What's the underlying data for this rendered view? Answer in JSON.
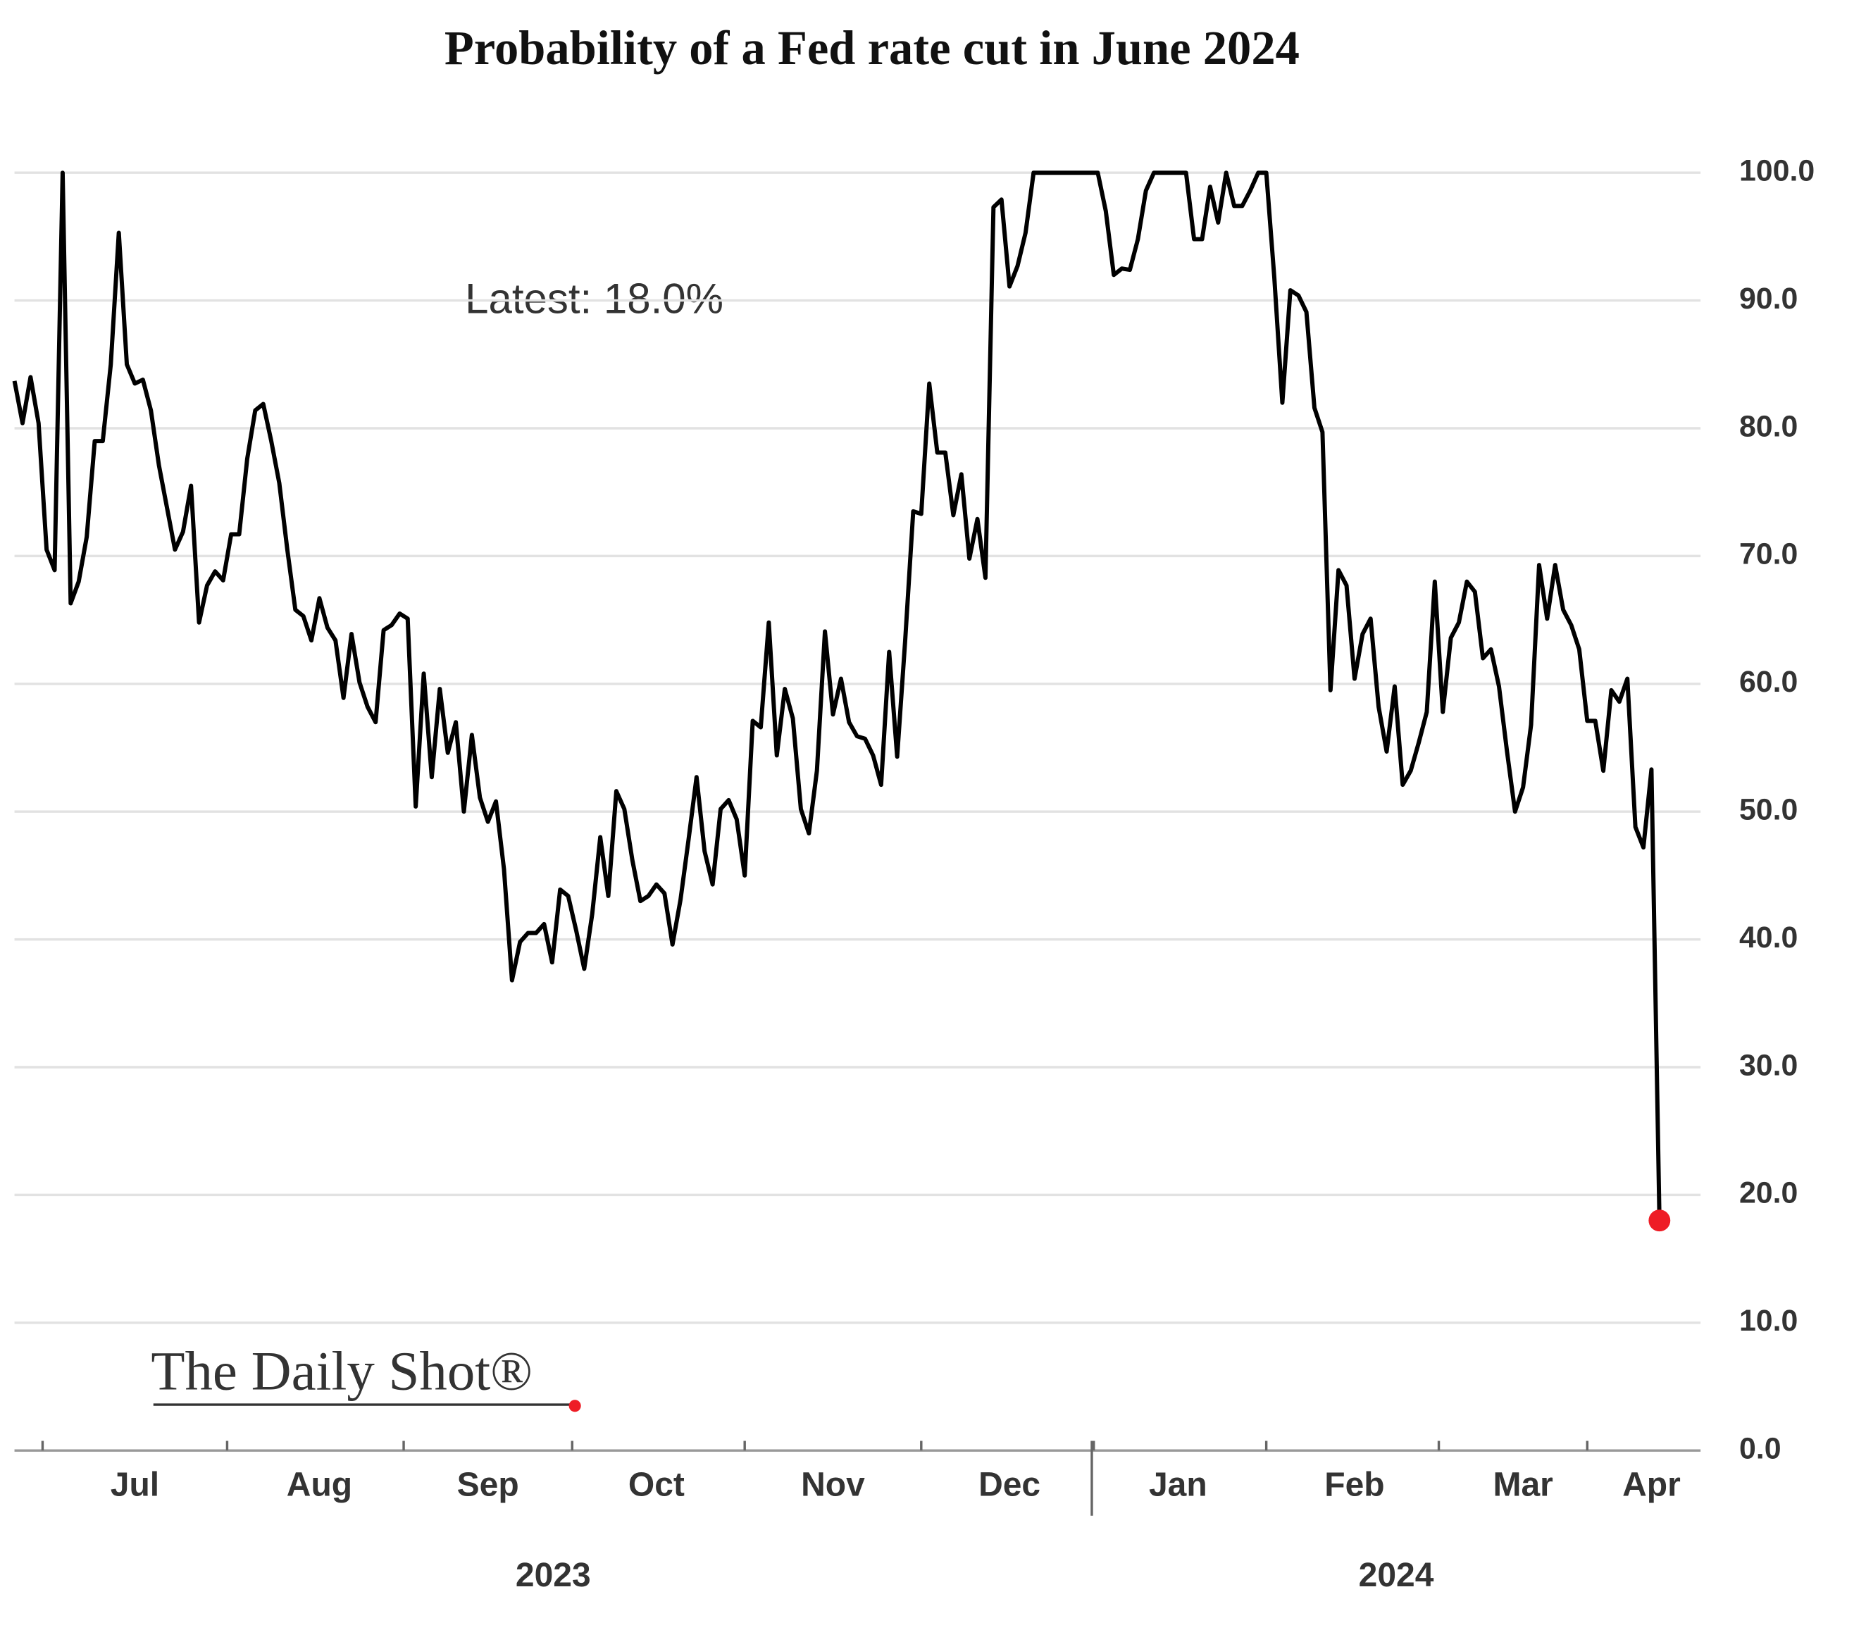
{
  "chart_data": {
    "type": "line",
    "title": "Probability of a Fed rate cut in June 2024",
    "annotation": "Latest:  18.0%",
    "source_logo": "The Daily Shot®",
    "year_labels": [
      "2023",
      "2024"
    ],
    "color": "#000000",
    "marker_color": "#ee1c25",
    "grid": true,
    "ylim": [
      0,
      100
    ],
    "yticks": [
      {
        "value": 0,
        "label": "0.0"
      },
      {
        "value": 10,
        "label": "10.0"
      },
      {
        "value": 20,
        "label": "20.0"
      },
      {
        "value": 30,
        "label": "30.0"
      },
      {
        "value": 40,
        "label": "40.0"
      },
      {
        "value": 50,
        "label": "50.0"
      },
      {
        "value": 60,
        "label": "60.0"
      },
      {
        "value": 70,
        "label": "70.0"
      },
      {
        "value": 80,
        "label": "80.0"
      },
      {
        "value": 90,
        "label": "90.0"
      },
      {
        "value": 100,
        "label": "100.0"
      }
    ],
    "categories": [
      null,
      null,
      null,
      null,
      null,
      null,
      null,
      null,
      null,
      null,
      null,
      null,
      null,
      null,
      null,
      "Jul",
      null,
      null,
      null,
      null,
      null,
      null,
      null,
      null,
      null,
      null,
      null,
      null,
      null,
      null,
      null,
      null,
      null,
      null,
      null,
      null,
      null,
      null,
      "Aug",
      null,
      null,
      null,
      null,
      null,
      null,
      null,
      null,
      null,
      null,
      null,
      null,
      null,
      null,
      null,
      null,
      null,
      null,
      null,
      null,
      "Sep",
      null,
      null,
      null,
      null,
      null,
      null,
      null,
      null,
      null,
      null,
      null,
      null,
      null,
      null,
      null,
      null,
      null,
      null,
      null,
      null,
      "Oct",
      null,
      null,
      null,
      null,
      null,
      null,
      null,
      null,
      null,
      null,
      null,
      null,
      null,
      null,
      null,
      null,
      null,
      null,
      null,
      null,
      null,
      "Nov",
      null,
      null,
      null,
      null,
      null,
      null,
      null,
      null,
      null,
      null,
      null,
      null,
      null,
      null,
      null,
      null,
      null,
      null,
      null,
      null,
      null,
      "Dec",
      null,
      null,
      null,
      null,
      null,
      null,
      null,
      null,
      null,
      null,
      null,
      null,
      null,
      null,
      null,
      null,
      null,
      null,
      null,
      null,
      "Jan",
      null,
      null,
      null,
      null,
      null,
      null,
      null,
      null,
      null,
      null,
      null,
      null,
      null,
      null,
      null,
      null,
      null,
      null,
      null,
      null,
      null,
      "Feb",
      null,
      null,
      null,
      null,
      null,
      null,
      null,
      null,
      null,
      null,
      null,
      null,
      null,
      null,
      null,
      null,
      null,
      null,
      null,
      null,
      "Mar",
      null,
      null,
      null,
      null,
      null,
      null,
      null,
      null,
      null,
      null,
      null,
      null,
      null,
      null,
      null,
      "Apr",
      null
    ],
    "values": [
      83.7,
      80.4,
      84,
      80.4,
      70.5,
      68.9,
      100,
      66.3,
      68,
      71.5,
      79,
      79,
      85,
      95.3,
      85,
      83.5,
      83.8,
      81.4,
      77.1,
      73.8,
      70.5,
      71.9,
      75.5,
      64.8,
      67.7,
      68.8,
      68.1,
      71.7,
      71.7,
      77.6,
      81.4,
      81.9,
      79,
      75.7,
      70.5,
      65.8,
      65.3,
      63.4,
      66.7,
      64.4,
      63.4,
      58.9,
      63.9,
      60.1,
      58.2,
      57,
      64.2,
      64.6,
      65.5,
      65.1,
      50.4,
      60.8,
      52.7,
      59.6,
      54.6,
      57,
      50,
      56,
      51.1,
      49.2,
      50.8,
      45.5,
      36.8,
      39.8,
      40.5,
      40.5,
      41.2,
      38.2,
      43.9,
      43.4,
      40.7,
      37.7,
      42,
      48,
      43.4,
      51.6,
      50.2,
      46.2,
      43,
      43.4,
      44.3,
      43.6,
      39.6,
      43.1,
      47.8,
      52.7,
      46.9,
      44.3,
      50.2,
      50.9,
      49.4,
      45,
      57.1,
      56.6,
      64.8,
      54.4,
      59.6,
      57.3,
      50.2,
      48.3,
      53.2,
      64.1,
      57.6,
      60.4,
      57,
      55.9,
      55.7,
      54.4,
      52.1,
      62.5,
      54.3,
      63.4,
      73.5,
      73.3,
      83.5,
      78.1,
      78.1,
      73.2,
      76.4,
      69.8,
      72.9,
      68.3,
      97.3,
      97.9,
      91.1,
      92.7,
      95.3,
      100,
      100,
      100,
      100,
      100,
      100,
      100,
      100,
      100,
      97,
      92,
      92.5,
      92.4,
      94.8,
      98.6,
      100,
      100,
      100,
      100,
      100,
      94.8,
      94.8,
      98.9,
      96.1,
      100,
      97.4,
      97.4,
      98.6,
      100,
      100,
      91.8,
      82,
      90.8,
      90.4,
      89.1,
      81.6,
      79.7,
      59.5,
      68.9,
      67.7,
      60.4,
      63.9,
      65.1,
      58.2,
      54.7,
      59.8,
      52.1,
      53.2,
      55.4,
      57.8,
      68,
      57.8,
      63.6,
      64.8,
      68,
      67.2,
      62,
      62.7,
      59.8,
      54.7,
      50,
      51.9,
      56.8,
      69.3,
      65.1,
      69.3,
      65.8,
      64.6,
      62.7,
      57.1,
      57.1,
      53.2,
      59.5,
      58.6,
      60.4,
      48.8,
      47.2,
      53.3,
      18
    ]
  }
}
